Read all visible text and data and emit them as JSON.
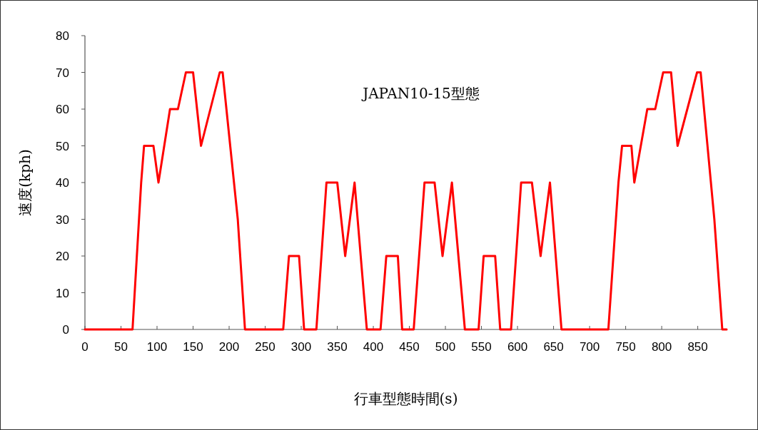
{
  "chart_data": {
    "type": "line",
    "title": "JAPAN10-15型態",
    "xlabel": "行車型態時間(s)",
    "ylabel": "速度(kph)",
    "x": [
      0,
      66,
      78,
      82,
      95,
      102,
      118,
      129,
      140,
      150,
      161,
      187,
      191,
      212,
      222,
      275,
      283,
      297,
      304,
      321,
      335,
      350,
      361,
      374,
      391,
      410,
      418,
      434,
      440,
      456,
      471,
      485,
      496,
      509,
      527,
      546,
      553,
      569,
      576,
      591,
      605,
      620,
      632,
      645,
      661,
      726,
      740,
      745,
      758,
      762,
      780,
      791,
      802,
      813,
      822,
      849,
      854,
      873,
      884,
      890
    ],
    "series": [
      {
        "color": "#ff0000",
        "values": [
          0,
          0,
          40,
          50,
          50,
          40,
          60,
          60,
          70,
          70,
          50,
          70,
          70,
          30,
          0,
          0,
          20,
          20,
          0,
          0,
          40,
          40,
          20,
          40,
          0,
          0,
          20,
          20,
          0,
          0,
          40,
          40,
          20,
          40,
          0,
          0,
          20,
          20,
          0,
          0,
          40,
          40,
          20,
          40,
          0,
          0,
          40,
          50,
          50,
          40,
          60,
          60,
          70,
          70,
          50,
          70,
          70,
          30,
          0,
          0
        ]
      }
    ],
    "xlim": [
      0,
      890
    ],
    "ylim": [
      0,
      80
    ],
    "xticks": [
      0,
      50,
      100,
      150,
      200,
      250,
      300,
      350,
      400,
      450,
      500,
      550,
      600,
      650,
      700,
      750,
      800,
      850
    ],
    "yticks": [
      0,
      10,
      20,
      30,
      40,
      50,
      60,
      70,
      80
    ],
    "grid": false,
    "marker": "none",
    "line_style": "solid"
  }
}
